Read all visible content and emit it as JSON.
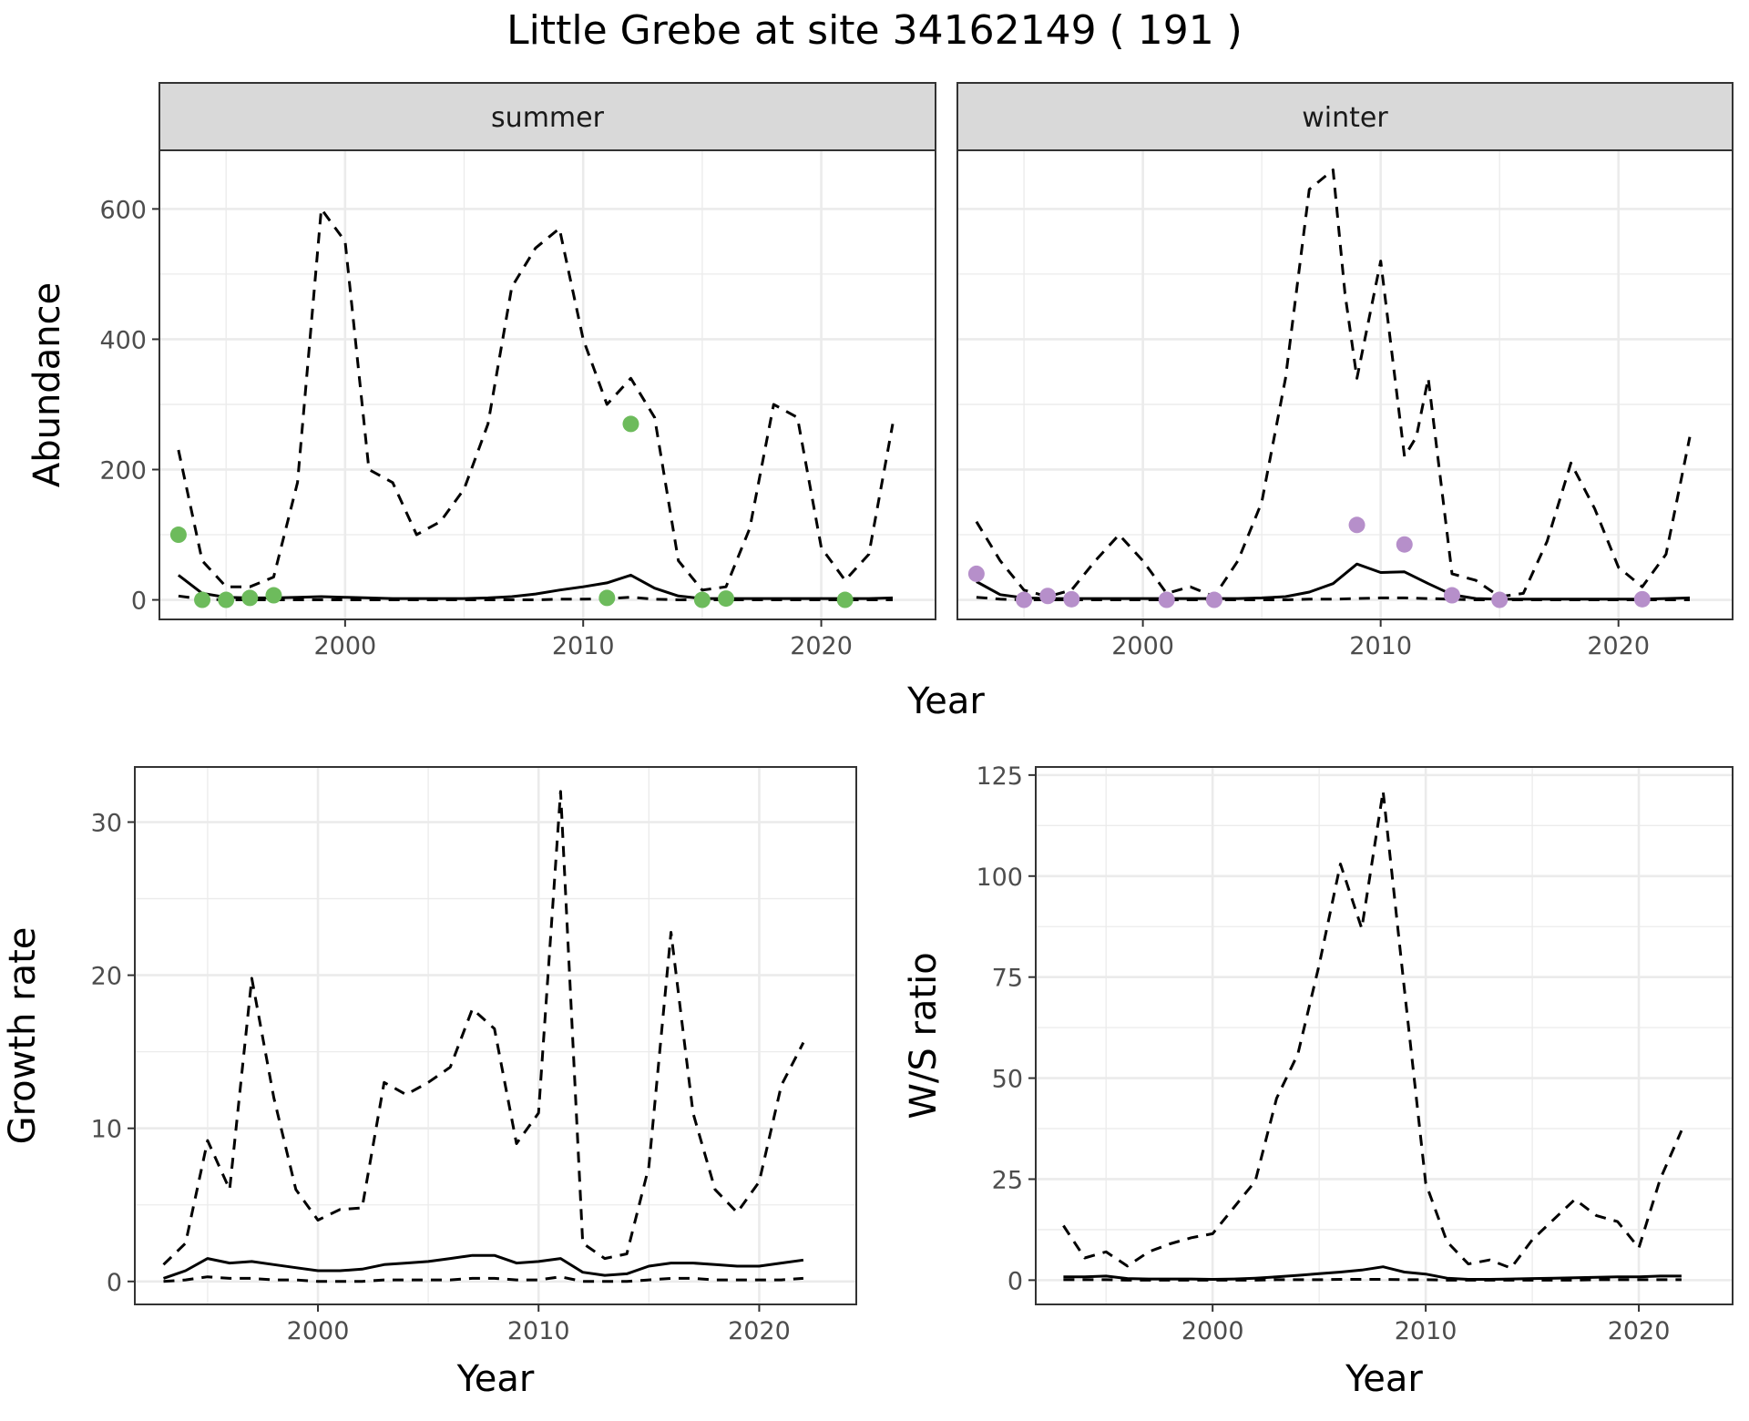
{
  "title": "Little Grebe at site 34162149 ( 191 )",
  "colors": {
    "summer_points": "#6dbb5c",
    "winter_points": "#b68fca",
    "lines": "#000000",
    "grid": "#ebebeb",
    "strip": "#d9d9d9"
  },
  "chart_data": [
    {
      "type": "line",
      "panel": "summer",
      "strip_label": "summer",
      "xlabel": "Year",
      "ylabel": "Abundance",
      "xlim": [
        1992.2,
        2024.8
      ],
      "ylim": [
        -30,
        690
      ],
      "x_ticks": [
        2000,
        2010,
        2020
      ],
      "y_ticks": [
        0,
        200,
        400,
        600
      ],
      "grid": true,
      "series": [
        {
          "style": "solid",
          "x": [
            1993,
            1994,
            1995,
            1996,
            1997,
            1998,
            1999,
            2000,
            2001,
            2002,
            2003,
            2004,
            2005,
            2006,
            2007,
            2008,
            2009,
            2010,
            2011,
            2012,
            2013,
            2014,
            2015,
            2016,
            2017,
            2018,
            2019,
            2020,
            2021,
            2022,
            2023
          ],
          "values": [
            38,
            10,
            4,
            3,
            3,
            4,
            5,
            4,
            3,
            2,
            2,
            2,
            2,
            3,
            5,
            9,
            15,
            20,
            26,
            38,
            18,
            6,
            2,
            2,
            2,
            2,
            2,
            2,
            2,
            2,
            3
          ]
        },
        {
          "style": "dashed",
          "x": [
            1993,
            1994,
            1995,
            1996,
            1997,
            1998,
            1999,
            2000,
            2001,
            2002,
            2003,
            2004,
            2005,
            2006,
            2007,
            2008,
            2009,
            2010,
            2011,
            2012,
            2013,
            2014,
            2015,
            2016,
            2017,
            2018,
            2019,
            2020,
            2021,
            2022,
            2023
          ],
          "values": [
            230,
            60,
            20,
            20,
            35,
            180,
            600,
            550,
            200,
            180,
            100,
            120,
            170,
            270,
            480,
            540,
            570,
            400,
            300,
            340,
            280,
            60,
            15,
            20,
            110,
            300,
            280,
            80,
            30,
            70,
            270
          ]
        },
        {
          "style": "dashed",
          "x": [
            1993,
            1994,
            1995,
            1996,
            1997,
            1998,
            1999,
            2000,
            2001,
            2002,
            2003,
            2004,
            2005,
            2006,
            2007,
            2008,
            2009,
            2010,
            2011,
            2012,
            2013,
            2014,
            2015,
            2016,
            2017,
            2018,
            2019,
            2020,
            2021,
            2022,
            2023
          ],
          "values": [
            6,
            1,
            0,
            0,
            0,
            0,
            0,
            0,
            0,
            0,
            0,
            0,
            0,
            0,
            0,
            0,
            1,
            1,
            2,
            4,
            1,
            0,
            0,
            0,
            0,
            0,
            0,
            0,
            0,
            0,
            0
          ]
        },
        {
          "style": "points",
          "x": [
            1993,
            1994,
            1995,
            1996,
            1997,
            2011,
            2012,
            2015,
            2016,
            2021
          ],
          "values": [
            100,
            0,
            0,
            3,
            7,
            3,
            270,
            0,
            2,
            0
          ]
        }
      ]
    },
    {
      "type": "line",
      "panel": "winter",
      "strip_label": "winter",
      "xlabel": "Year",
      "ylabel": "Abundance",
      "xlim": [
        1992.2,
        2024.8
      ],
      "ylim": [
        -30,
        690
      ],
      "x_ticks": [
        2000,
        2010,
        2020
      ],
      "y_ticks": [
        0,
        200,
        400,
        600
      ],
      "grid": true,
      "series": [
        {
          "style": "solid",
          "x": [
            1993,
            1994,
            1995,
            1996,
            1997,
            1998,
            1999,
            2000,
            2001,
            2002,
            2003,
            2004,
            2005,
            2006,
            2007,
            2008,
            2009,
            2010,
            2011,
            2012,
            2013,
            2014,
            2015,
            2016,
            2017,
            2018,
            2019,
            2020,
            2021,
            2022,
            2023
          ],
          "values": [
            28,
            8,
            3,
            2,
            2,
            2,
            2,
            2,
            2,
            2,
            2,
            2,
            3,
            5,
            12,
            25,
            55,
            42,
            43,
            25,
            8,
            2,
            1,
            1,
            1,
            1,
            1,
            1,
            1,
            2,
            3
          ]
        },
        {
          "style": "dashed",
          "x": [
            1993,
            1994,
            1995,
            1996,
            1997,
            1998,
            1999,
            2000,
            2001,
            2002,
            2003,
            2004,
            2005,
            2006,
            2007,
            2008,
            2008.5,
            2009,
            2010,
            2011,
            2011.5,
            2012,
            2013,
            2014,
            2015,
            2016,
            2017,
            2018,
            2019,
            2020,
            2021,
            2022,
            2023
          ],
          "values": [
            120,
            60,
            15,
            5,
            15,
            60,
            100,
            60,
            10,
            20,
            5,
            60,
            150,
            340,
            630,
            660,
            470,
            340,
            520,
            220,
            250,
            340,
            40,
            30,
            5,
            10,
            90,
            210,
            140,
            50,
            20,
            70,
            250
          ]
        },
        {
          "style": "dashed",
          "x": [
            1993,
            1994,
            1995,
            1996,
            1997,
            1998,
            1999,
            2000,
            2001,
            2002,
            2003,
            2004,
            2005,
            2006,
            2007,
            2008,
            2009,
            2010,
            2011,
            2012,
            2013,
            2014,
            2015,
            2016,
            2017,
            2018,
            2019,
            2020,
            2021,
            2022,
            2023
          ],
          "values": [
            4,
            1,
            0,
            0,
            0,
            0,
            0,
            0,
            0,
            0,
            0,
            0,
            0,
            0,
            1,
            1,
            2,
            3,
            3,
            2,
            1,
            0,
            0,
            0,
            0,
            0,
            0,
            0,
            0,
            0,
            0
          ]
        },
        {
          "style": "points",
          "x": [
            1993,
            1995,
            1996,
            1997,
            2001,
            2003,
            2009,
            2011,
            2013,
            2015,
            2021
          ],
          "values": [
            40,
            0,
            6,
            1,
            0,
            0,
            115,
            85,
            7,
            0,
            1
          ]
        }
      ]
    },
    {
      "type": "line",
      "panel": "growth",
      "xlabel": "Year",
      "ylabel": "Growth rate",
      "xlim": [
        1991.7,
        2024.4
      ],
      "ylim": [
        -1.5,
        33.6
      ],
      "x_ticks": [
        2000,
        2010,
        2020
      ],
      "y_ticks": [
        0,
        10,
        20,
        30
      ],
      "grid": true,
      "series": [
        {
          "style": "solid",
          "x": [
            1993,
            1994,
            1995,
            1996,
            1997,
            1998,
            1999,
            2000,
            2001,
            2002,
            2003,
            2004,
            2005,
            2006,
            2007,
            2008,
            2009,
            2010,
            2011,
            2012,
            2013,
            2014,
            2015,
            2016,
            2017,
            2018,
            2019,
            2020,
            2021,
            2022
          ],
          "values": [
            0.2,
            0.7,
            1.5,
            1.2,
            1.3,
            1.1,
            0.9,
            0.7,
            0.7,
            0.8,
            1.1,
            1.2,
            1.3,
            1.5,
            1.7,
            1.7,
            1.2,
            1.3,
            1.5,
            0.6,
            0.4,
            0.5,
            1.0,
            1.2,
            1.2,
            1.1,
            1.0,
            1.0,
            1.2,
            1.4
          ]
        },
        {
          "style": "dashed",
          "x": [
            1993,
            1994,
            1995,
            1996,
            1997,
            1998,
            1999,
            2000,
            2001,
            2002,
            2003,
            2004,
            2005,
            2006,
            2007,
            2008,
            2009,
            2010,
            2011,
            2012,
            2013,
            2014,
            2015,
            2016,
            2017,
            2018,
            2019,
            2020,
            2021,
            2022
          ],
          "values": [
            1.1,
            2.5,
            9.2,
            6.0,
            19.8,
            12.0,
            6.0,
            4.0,
            4.7,
            4.8,
            13.0,
            12.2,
            13.0,
            14.0,
            17.8,
            16.5,
            9.0,
            11.0,
            32.0,
            2.5,
            1.5,
            1.8,
            7.5,
            22.8,
            11.0,
            6.0,
            4.5,
            6.5,
            12.8,
            15.6
          ]
        },
        {
          "style": "dashed",
          "x": [
            1993,
            1994,
            1995,
            1996,
            1997,
            1998,
            1999,
            2000,
            2001,
            2002,
            2003,
            2004,
            2005,
            2006,
            2007,
            2008,
            2009,
            2010,
            2011,
            2012,
            2013,
            2014,
            2015,
            2016,
            2017,
            2018,
            2019,
            2020,
            2021,
            2022
          ],
          "values": [
            0.0,
            0.1,
            0.3,
            0.2,
            0.2,
            0.1,
            0.1,
            0.0,
            0.0,
            0.0,
            0.1,
            0.1,
            0.1,
            0.1,
            0.2,
            0.2,
            0.1,
            0.1,
            0.3,
            0.0,
            0.0,
            0.0,
            0.1,
            0.2,
            0.2,
            0.1,
            0.1,
            0.1,
            0.1,
            0.2
          ]
        }
      ]
    },
    {
      "type": "line",
      "panel": "ratio",
      "xlabel": "Year",
      "ylabel": "W/S ratio",
      "xlim": [
        1991.7,
        2024.4
      ],
      "ylim": [
        -6,
        127
      ],
      "x_ticks": [
        2000,
        2010,
        2020
      ],
      "y_ticks": [
        0,
        25,
        50,
        75,
        100,
        125
      ],
      "grid": true,
      "series": [
        {
          "style": "solid",
          "x": [
            1993,
            1994,
            1995,
            1996,
            1997,
            1998,
            1999,
            2000,
            2001,
            2002,
            2003,
            2004,
            2005,
            2006,
            2007,
            2008,
            2009,
            2010,
            2011,
            2012,
            2013,
            2014,
            2015,
            2016,
            2017,
            2018,
            2019,
            2020,
            2021,
            2022
          ],
          "values": [
            0.8,
            0.8,
            1.0,
            0.4,
            0.3,
            0.3,
            0.3,
            0.2,
            0.3,
            0.5,
            0.8,
            1.2,
            1.6,
            2.0,
            2.5,
            3.3,
            2.0,
            1.5,
            0.5,
            0.2,
            0.2,
            0.3,
            0.4,
            0.5,
            0.6,
            0.7,
            0.8,
            0.8,
            1.0,
            1.0
          ]
        },
        {
          "style": "dashed",
          "x": [
            1993,
            1994,
            1995,
            1996,
            1997,
            1998,
            1999,
            2000,
            2001,
            2002,
            2003,
            2004,
            2005,
            2006,
            2007,
            2008,
            2009,
            2010,
            2011,
            2012,
            2013,
            2014,
            2015,
            2016,
            2017,
            2018,
            2019,
            2020,
            2021,
            2022
          ],
          "values": [
            13.5,
            5.5,
            7.0,
            3.5,
            7.0,
            9.0,
            10.5,
            11.5,
            18.0,
            24.5,
            45.0,
            56.0,
            78.0,
            103.0,
            87.0,
            121.0,
            72.0,
            24.0,
            9.5,
            4.0,
            5.0,
            3.0,
            10.0,
            15.0,
            20.0,
            16.0,
            14.5,
            8.0,
            25.0,
            37.0
          ]
        },
        {
          "style": "dashed",
          "x": [
            1993,
            1994,
            1995,
            1996,
            1997,
            1998,
            1999,
            2000,
            2001,
            2002,
            2003,
            2004,
            2005,
            2006,
            2007,
            2008,
            2009,
            2010,
            2011,
            2012,
            2013,
            2014,
            2015,
            2016,
            2017,
            2018,
            2019,
            2020,
            2021,
            2022
          ],
          "values": [
            0.1,
            0.1,
            0.1,
            0.0,
            0.0,
            0.0,
            0.0,
            0.0,
            0.0,
            0.0,
            0.1,
            0.1,
            0.1,
            0.2,
            0.2,
            0.2,
            0.1,
            0.1,
            0.0,
            0.0,
            0.0,
            0.0,
            0.0,
            0.0,
            0.0,
            0.1,
            0.1,
            0.1,
            0.1,
            0.1
          ]
        }
      ]
    }
  ],
  "shared_axis_label": "Year"
}
